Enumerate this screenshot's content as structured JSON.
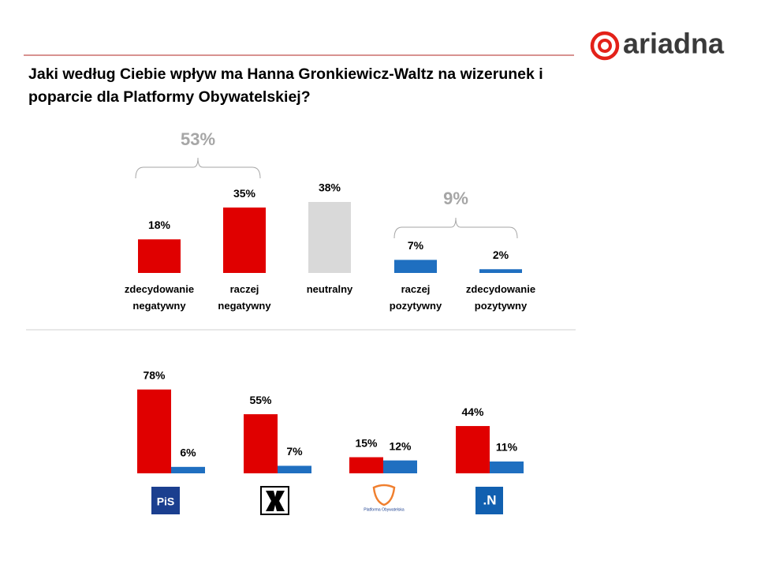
{
  "header": {
    "logo": "ariadna",
    "title": "Jaki według Ciebie wpływ ma Hanna Gronkiewicz-Waltz na wizerunek i poparcie dla Platformy Obywatelskiej?"
  },
  "chart_data": [
    {
      "type": "bar",
      "categories": [
        "zdecydowanie negatywny",
        "raczej negatywny",
        "neutralny",
        "raczej pozytywny",
        "zdecydowanie pozytywny"
      ],
      "values": [
        18,
        35,
        38,
        7,
        2
      ],
      "value_labels": [
        "18%",
        "35%",
        "38%",
        "7%",
        "2%"
      ],
      "colors": [
        "#e00000",
        "#e00000",
        "#d9d9d9",
        "#1f6fc0",
        "#1f6fc0"
      ],
      "ylim": [
        0,
        40
      ],
      "annotations": [
        {
          "value": 53,
          "label": "53%"
        },
        {
          "value": 9,
          "label": "9%"
        }
      ]
    },
    {
      "type": "grouped_bar",
      "categories": [
        "PiS",
        null,
        "Platforma Obywatelska",
        ".N"
      ],
      "series": [
        {
          "color": "#e00000",
          "values": [
            78,
            55,
            15,
            44
          ],
          "value_labels": [
            "78%",
            "55%",
            "15%",
            "44%"
          ]
        },
        {
          "color": "#1f6fc0",
          "values": [
            6,
            7,
            12,
            11
          ],
          "value_labels": [
            "6%",
            "7%",
            "12%",
            "11%"
          ]
        }
      ],
      "ylim": [
        0,
        80
      ]
    }
  ]
}
